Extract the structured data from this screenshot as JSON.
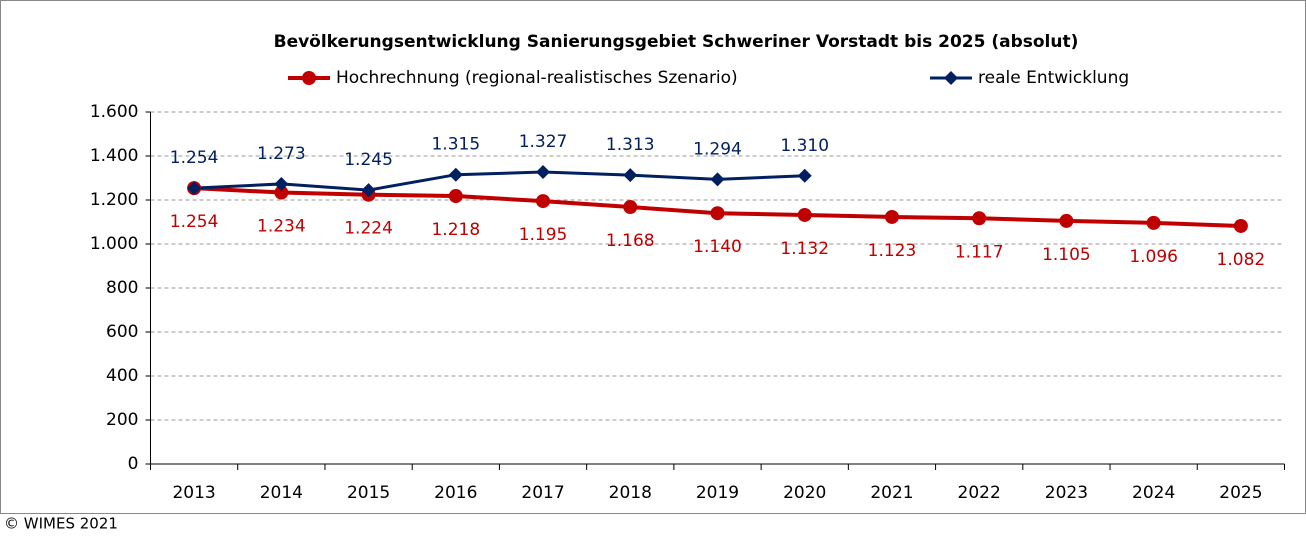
{
  "chart_data": {
    "type": "line",
    "title": "Bevölkerungsentwicklung Sanierungsgebiet Schweriner Vorstadt bis 2025 (absolut)",
    "categories": [
      "2013",
      "2014",
      "2015",
      "2016",
      "2017",
      "2018",
      "2019",
      "2020",
      "2021",
      "2022",
      "2023",
      "2024",
      "2025"
    ],
    "series": [
      {
        "name": "Hochrechnung (regional-realistisches Szenario)",
        "color": "#c00000",
        "marker": "circle",
        "label_position": "below",
        "values": [
          1254,
          1234,
          1224,
          1218,
          1195,
          1168,
          1140,
          1132,
          1123,
          1117,
          1105,
          1096,
          1082
        ],
        "value_labels": [
          "1.254",
          "1.234",
          "1.224",
          "1.218",
          "1.195",
          "1.168",
          "1.140",
          "1.132",
          "1.123",
          "1.117",
          "1.105",
          "1.096",
          "1.082"
        ]
      },
      {
        "name": "reale Entwicklung",
        "color": "#002060",
        "marker": "diamond",
        "label_position": "above",
        "values": [
          1254,
          1273,
          1245,
          1315,
          1327,
          1313,
          1294,
          1310,
          null,
          null,
          null,
          null,
          null
        ],
        "value_labels": [
          "1.254",
          "1.273",
          "1.245",
          "1.315",
          "1.327",
          "1.313",
          "1.294",
          "1.310",
          null,
          null,
          null,
          null,
          null
        ]
      }
    ],
    "ylim": [
      0,
      1600
    ],
    "yticks": [
      0,
      200,
      400,
      600,
      800,
      {
        "value": 1000,
        "label": "1.000"
      },
      {
        "value": 1200,
        "label": "1.200"
      },
      {
        "value": 1400,
        "label": "1.400"
      },
      {
        "value": 1600,
        "label": "1.600"
      }
    ],
    "grid": true,
    "legend": "top",
    "source": "© WIMES 2021"
  }
}
